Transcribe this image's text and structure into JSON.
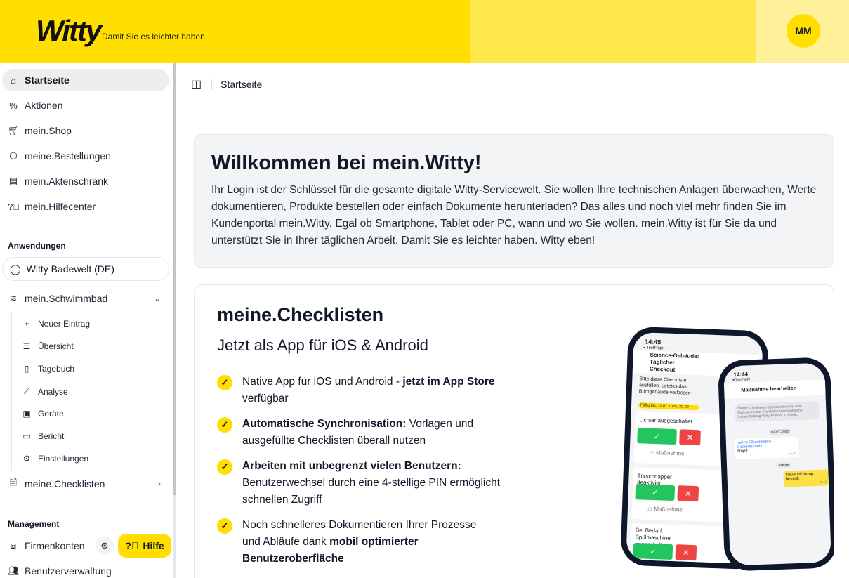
{
  "header": {
    "logo": "Witty",
    "tagline": "Damit Sie es leichter haben.",
    "avatar": "MM"
  },
  "sidebar": {
    "items": [
      {
        "label": "Startseite",
        "icon": "home-icon"
      },
      {
        "label": "Aktionen",
        "icon": "percent-icon"
      },
      {
        "label": "mein.Shop",
        "icon": "cart-icon"
      },
      {
        "label": "meine.Bestellungen",
        "icon": "package-icon"
      },
      {
        "label": "mein.Aktenschrank",
        "icon": "cabinet-icon"
      },
      {
        "label": "mein.Hilfecenter",
        "icon": "help-circle-icon"
      }
    ],
    "apps_heading": "Anwendungen",
    "app_selector": "Witty Badewelt (DE)",
    "schwimmbad": "mein.Schwimmbad",
    "sub_items": [
      {
        "label": "Neuer Eintrag",
        "icon": "plus-icon"
      },
      {
        "label": "Übersicht",
        "icon": "list-icon"
      },
      {
        "label": "Tagebuch",
        "icon": "book-icon"
      },
      {
        "label": "Analyse",
        "icon": "chart-line-icon"
      },
      {
        "label": "Geräte",
        "icon": "chip-icon"
      },
      {
        "label": "Bericht",
        "icon": "report-icon"
      },
      {
        "label": "Einstellungen",
        "icon": "gear-icon"
      }
    ],
    "checklisten": "meine.Checklisten",
    "management_heading": "Management",
    "management_items": [
      {
        "label": "Firmenkonten",
        "icon": "briefcase-icon"
      },
      {
        "label": "Benutzerverwaltung",
        "icon": "users-icon"
      }
    ],
    "help": "Hilfe"
  },
  "breadcrumb": "Startseite",
  "welcome": {
    "title": "Willkommen bei mein.Witty!",
    "text": "Ihr Login ist der Schlüssel für die gesamte digitale Witty-Servicewelt. Sie wollen Ihre technischen Anlagen überwachen, Werte dokumentieren, Produkte bestellen oder einfach Dokumente herunterladen? Das alles und noch viel mehr finden Sie im Kundenportal mein.Witty. Egal ob Smartphone, Tablet oder PC, wann und wo Sie wollen. mein.Witty ist für Sie da und unterstützt Sie in Ihrer täglichen Arbeit. Damit Sie es leichter haben. Witty eben!"
  },
  "checklists": {
    "title": "meine.Checklisten",
    "subtitle": "Jetzt als App für iOS & Android",
    "features": [
      {
        "pre": "Native App für iOS und Android - ",
        "bold": "jetzt im App Store",
        "post": " verfügbar"
      },
      {
        "pre": "",
        "bold": "Automatische Synchronisation:",
        "post": " Vorlagen und ausgefüllte Checklisten überall nutzen"
      },
      {
        "pre": "",
        "bold": "Arbeiten mit unbegrenzt vielen Benutzern:",
        "post": " Benutzerwechsel durch eine 4-stellige PIN ermöglicht schnellen Zugriff"
      },
      {
        "pre": "Noch schnelleres Dokumentieren Ihrer Prozesse und Abläufe dank ",
        "bold": "mobil optimierter Benutzeroberfläche",
        "post": ""
      }
    ],
    "phone1": {
      "time": "14:45",
      "testflight": "◂ TestFlight",
      "title": "Science-Gebäude: Täglicher Checkout",
      "desc": "Bitte diese Checkliste ausfüllen. Letztes das Bürogebäude verlassen",
      "due": "Fällig bis: 11.07.2025, 20:00",
      "items": [
        "Lichter ausgeschaltet",
        "Türschnapper deaktiviert",
        "Bei Bedarf: Spülmaschine angeschaltet"
      ],
      "action": "⚠ Maßnahme"
    },
    "phone2": {
      "time": "14:44",
      "testflight": "◂ TestFlight",
      "title": "Maßnahme bearbeiten",
      "system": "meine.Checklisten Dosiertechnik hat eine Maßnahme zur Checkliste Vierteljährliche Instandhaltung Witty-Dosical X erstellt.",
      "date": "03.07.2025",
      "sender": "meine.Checklisten Dosiertechnik",
      "msg": "Tropft",
      "msg_time": "18:00",
      "today": "Heute",
      "reply": "Neue Dichtung bestellt",
      "reply_time": "12:13"
    }
  },
  "colors": {
    "brand": "#FFDE00",
    "success": "#22c55e",
    "danger": "#ef4444"
  }
}
